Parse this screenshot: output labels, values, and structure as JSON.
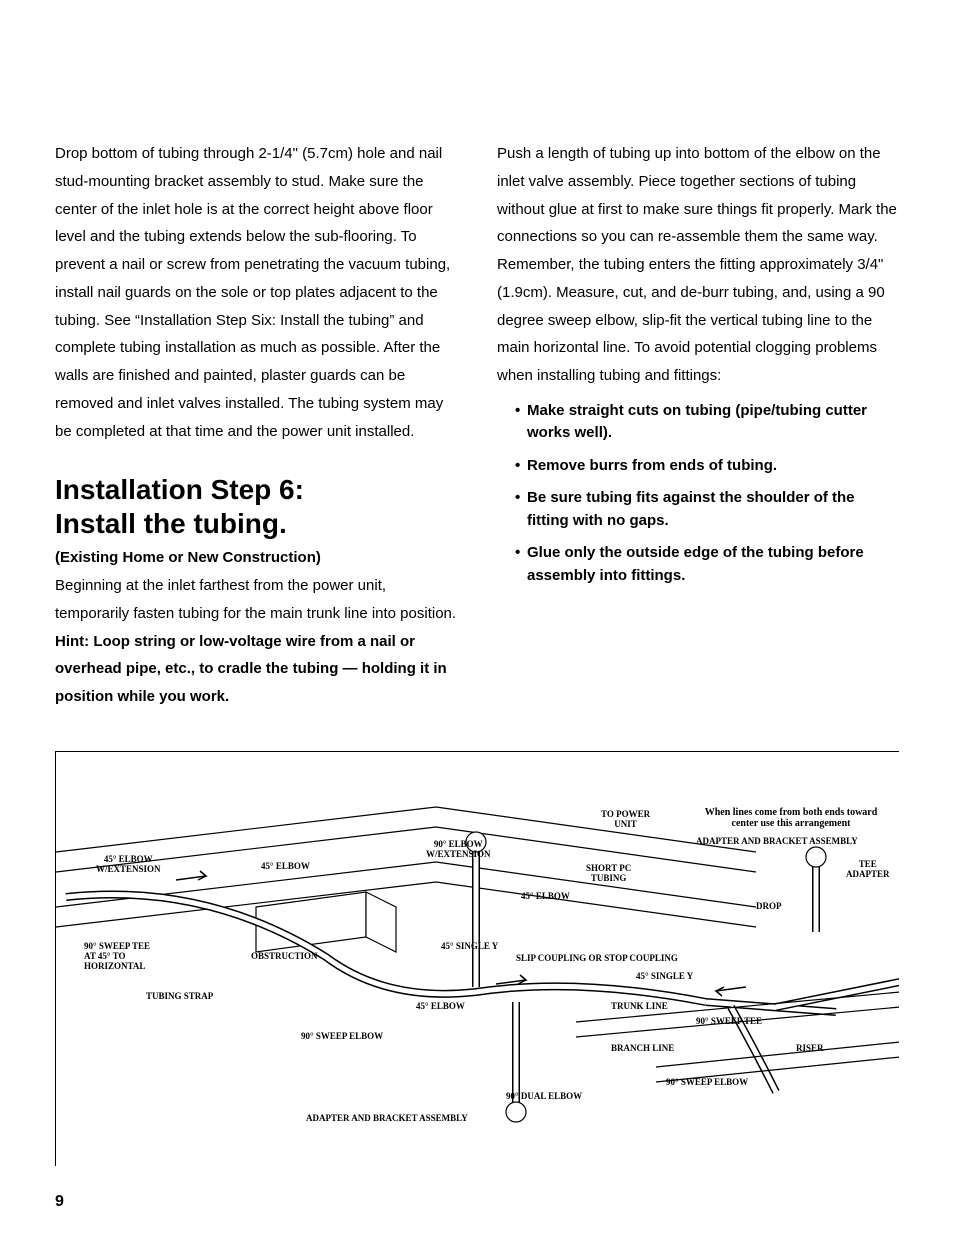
{
  "left_col": {
    "para1": "Drop bottom of tubing through 2-1/4\" (5.7cm) hole and nail stud-mounting bracket assembly to stud. Make sure the center of the inlet hole is at the correct height above floor level and the tubing extends below the sub-flooring. To prevent a nail or screw from penetrating the vacuum tubing, install nail guards on the sole or top plates adjacent to the tubing. See “Installation Step Six: Install the tubing” and complete tubing installation as much as possible. After the walls are finished and painted, plaster guards can be removed and inlet valves installed. The tubing system may be completed at that time and the power unit installed.",
    "heading_l1": "Installation Step 6:",
    "heading_l2": "Install the tubing.",
    "subhead": "(Existing Home or New Construction)",
    "intro_plain": "Beginning at the inlet farthest from the power unit, temporarily fasten tubing for the main trunk line into position. ",
    "intro_hint": "Hint: Loop string or low-voltage wire from a nail or overhead pipe, etc., to cradle the tubing — holding it in position while you work."
  },
  "right_col": {
    "para1": "Push a length of tubing up into bottom of the elbow on the inlet valve assembly. Piece together sections of tubing without glue at first to make sure things fit properly. Mark the connections so you can re-assemble them the same way. Remember, the tubing enters the fitting approximately 3/4\" (1.9cm). Measure, cut, and de-burr tubing, and, using a 90 degree sweep elbow, slip-fit the vertical tubing line to the main horizontal line. To avoid potential clogging problems when installing tubing and fittings:",
    "bullets": [
      "Make straight cuts on tubing (pipe/tubing cutter works well).",
      "Remove burrs from ends of tubing.",
      "Be sure tubing fits against the shoulder of the fitting with no gaps.",
      "Glue only the outside edge of the tubing before assembly into fittings."
    ]
  },
  "diagram": {
    "note_text": "When lines come from both ends toward center use this arrangement",
    "labels": {
      "to_power_unit": "TO POWER\nUNIT",
      "ninety_elbow_ext": "90° ELBOW\nW/EXTENSION",
      "adapter_bracket_top": "ADAPTER AND BRACKET ASSEMBLY",
      "forty5_elbow_ext": "45° ELBOW\nW/EXTENSION",
      "forty5_elbow_a": "45° ELBOW",
      "short_pc_tubing": "SHORT PC\nTUBING",
      "tee_adapter": "TEE\nADAPTER",
      "forty5_elbow_b": "45° ELBOW",
      "drop": "DROP",
      "ninety_sweep_tee": "90° SWEEP TEE\nAT 45° TO\nHORIZONTAL",
      "obstruction": "OBSTRUCTION",
      "forty5_single_y_a": "45° SINGLE Y",
      "slip_coupling": "SLIP COUPLING OR STOP COUPLING",
      "forty5_single_y_b": "45° SINGLE Y",
      "tubing_strap": "TUBING STRAP",
      "forty5_elbow_c": "45° ELBOW",
      "trunk_line": "TRUNK LINE",
      "ninety_sweep_tee_b": "90° SWEEP TEE",
      "ninety_sweep_elbow": "90° SWEEP ELBOW",
      "branch_line": "BRANCH LINE",
      "riser": "RISER",
      "ninety_dual_elbow": "90° DUAL ELBOW",
      "ninety_sweep_elbow_b": "90° SWEEP ELBOW",
      "adapter_bracket_bottom": "ADAPTER AND BRACKET ASSEMBLY"
    }
  },
  "page_number": "9"
}
